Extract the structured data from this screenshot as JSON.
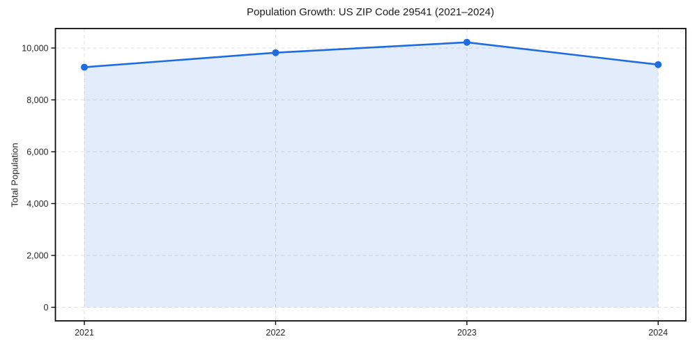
{
  "chart_data": {
    "type": "area",
    "title": "Population Growth: US ZIP Code 29541 (2021–2024)",
    "xlabel": "",
    "ylabel": "Total Population",
    "categories": [
      "2021",
      "2022",
      "2023",
      "2024"
    ],
    "series": [
      {
        "name": "Total Population",
        "values": [
          9260,
          9820,
          10220,
          9360
        ]
      }
    ],
    "yticks": [
      0,
      2000,
      4000,
      6000,
      8000,
      10000
    ],
    "ytick_labels": [
      "0",
      "2,000",
      "4,000",
      "6,000",
      "8,000",
      "10,000"
    ],
    "ylim": [
      0,
      10000
    ],
    "grid": true,
    "grid_style": "dashed",
    "legend": "none",
    "marker": "circle",
    "colors": {
      "line": "#1f6ce0",
      "marker": "#1f6ce0",
      "fill": "rgba(31,108,224,0.13)",
      "grid": "#dedede",
      "frame": "#0a0a0a",
      "tick_text": "#262626",
      "title_text": "#1a1a1a",
      "background": "#ffffff"
    }
  }
}
